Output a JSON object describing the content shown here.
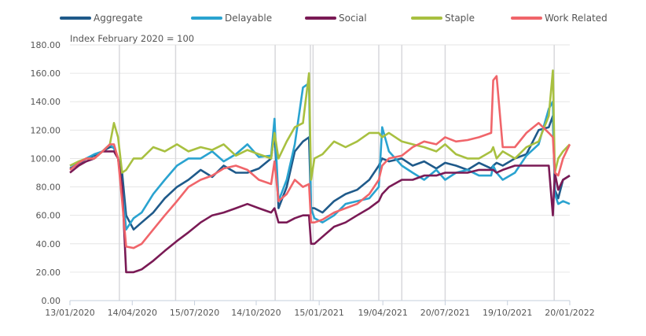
{
  "chart_data": {
    "type": "line",
    "subtitle": "Index February 2020 = 100",
    "ylim": [
      0,
      180
    ],
    "yticks": [
      "0.00",
      "20.00",
      "40.00",
      "60.00",
      "80.00",
      "100.00",
      "120.00",
      "140.00",
      "160.00",
      "180.00"
    ],
    "ytick_values": [
      0,
      20,
      40,
      60,
      80,
      100,
      120,
      140,
      160,
      180
    ],
    "xlabels": [
      "13/01/2020",
      "14/04/2020",
      "15/07/2020",
      "14/10/2020",
      "15/01/2021",
      "19/04/2021",
      "20/07/2021",
      "19/10/2021",
      "20/01/2022"
    ],
    "x_unit": "days since 13/01/2020",
    "xlim": [
      0,
      738
    ],
    "xlabel_days": [
      0,
      92,
      184,
      275,
      368,
      462,
      554,
      646,
      738
    ],
    "reference_lines_days": [
      73,
      156,
      303,
      355,
      359,
      456,
      490,
      554,
      715
    ],
    "grid": true,
    "legend_position": "top",
    "x": [
      0,
      13,
      24,
      36,
      48,
      59,
      65,
      71,
      77,
      83,
      94,
      106,
      123,
      140,
      158,
      175,
      193,
      210,
      227,
      245,
      262,
      279,
      297,
      302,
      308,
      320,
      332,
      344,
      353,
      356,
      361,
      373,
      390,
      407,
      424,
      442,
      456,
      461,
      471,
      490,
      506,
      523,
      541,
      554,
      570,
      587,
      604,
      622,
      625,
      630,
      639,
      657,
      674,
      692,
      707,
      713,
      716,
      721,
      728,
      738
    ],
    "series": [
      {
        "name": "Aggregate",
        "color": "#1f5a8a",
        "values": [
          93,
          96,
          100,
          102,
          105,
          108,
          108,
          100,
          90,
          60,
          50,
          55,
          62,
          72,
          80,
          85,
          92,
          87,
          95,
          90,
          90,
          93,
          100,
          118,
          65,
          80,
          105,
          112,
          115,
          65,
          65,
          62,
          70,
          75,
          78,
          85,
          95,
          100,
          98,
          100,
          95,
          98,
          93,
          97,
          95,
          92,
          97,
          93,
          95,
          97,
          95,
          100,
          103,
          120,
          122,
          130,
          78,
          72,
          85,
          88
        ]
      },
      {
        "name": "Delayable",
        "color": "#2aa3d0",
        "values": [
          95,
          97,
          100,
          103,
          105,
          110,
          107,
          100,
          80,
          50,
          58,
          62,
          75,
          85,
          95,
          100,
          100,
          105,
          98,
          103,
          110,
          101,
          102,
          128,
          70,
          85,
          110,
          150,
          153,
          65,
          58,
          55,
          60,
          68,
          70,
          72,
          80,
          122,
          105,
          95,
          90,
          85,
          92,
          85,
          90,
          92,
          88,
          88,
          95,
          90,
          85,
          90,
          102,
          110,
          135,
          140,
          75,
          68,
          70,
          68
        ]
      },
      {
        "name": "Social",
        "color": "#7a1a55",
        "values": [
          90,
          95,
          98,
          100,
          105,
          105,
          105,
          100,
          80,
          20,
          20,
          22,
          28,
          35,
          42,
          48,
          55,
          60,
          62,
          65,
          68,
          65,
          62,
          65,
          55,
          55,
          58,
          60,
          60,
          40,
          40,
          45,
          52,
          55,
          60,
          65,
          70,
          75,
          80,
          85,
          85,
          88,
          88,
          90,
          90,
          90,
          92,
          92,
          92,
          90,
          92,
          95,
          95,
          95,
          95,
          60,
          90,
          78,
          85,
          88
        ]
      },
      {
        "name": "Staple",
        "color": "#a8c040",
        "values": [
          95,
          98,
          100,
          100,
          105,
          110,
          125,
          115,
          90,
          92,
          100,
          100,
          108,
          105,
          110,
          105,
          108,
          106,
          110,
          102,
          106,
          103,
          100,
          118,
          100,
          112,
          122,
          125,
          160,
          85,
          100,
          103,
          112,
          108,
          112,
          118,
          118,
          115,
          118,
          112,
          110,
          108,
          105,
          110,
          103,
          100,
          100,
          105,
          108,
          100,
          105,
          100,
          108,
          112,
          130,
          162,
          90,
          100,
          105,
          110
        ]
      },
      {
        "name": "Work Related",
        "color": "#f0656a",
        "values": [
          92,
          97,
          100,
          100,
          105,
          110,
          110,
          100,
          70,
          38,
          37,
          40,
          50,
          60,
          70,
          80,
          85,
          88,
          93,
          95,
          92,
          85,
          82,
          98,
          70,
          75,
          85,
          80,
          82,
          55,
          55,
          57,
          62,
          65,
          68,
          75,
          85,
          95,
          100,
          102,
          108,
          112,
          110,
          115,
          112,
          113,
          115,
          118,
          155,
          158,
          108,
          108,
          118,
          125,
          118,
          115,
          90,
          88,
          100,
          110
        ]
      }
    ]
  }
}
